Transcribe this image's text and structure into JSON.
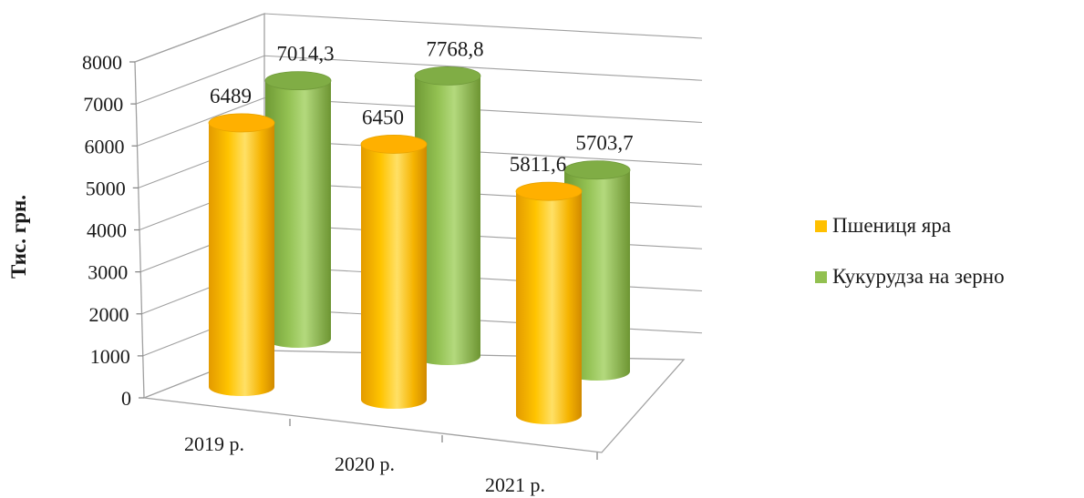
{
  "chart_data": {
    "type": "bar",
    "style": "3d-cylinder",
    "categories": [
      "2019 р.",
      "2020 р.",
      "2021 р."
    ],
    "ylabel": "Тис. грн.",
    "ylim": [
      0,
      8000
    ],
    "yticks": [
      "0",
      "1000",
      "2000",
      "3000",
      "4000",
      "5000",
      "6000",
      "7000",
      "8000"
    ],
    "series": [
      {
        "name": "Пшениця яра",
        "values": [
          6489,
          6450,
          5811.6
        ],
        "labels": [
          "6489",
          "6450",
          "5811,6"
        ],
        "color": "#ffc000"
      },
      {
        "name": "Кукурудза на зерно",
        "values": [
          7014.3,
          7768.8,
          5703.7
        ],
        "labels": [
          "7014,3",
          "7768,8",
          "5703,7"
        ],
        "color": "#92c050"
      }
    ],
    "legend_position": "right",
    "grid": true
  }
}
